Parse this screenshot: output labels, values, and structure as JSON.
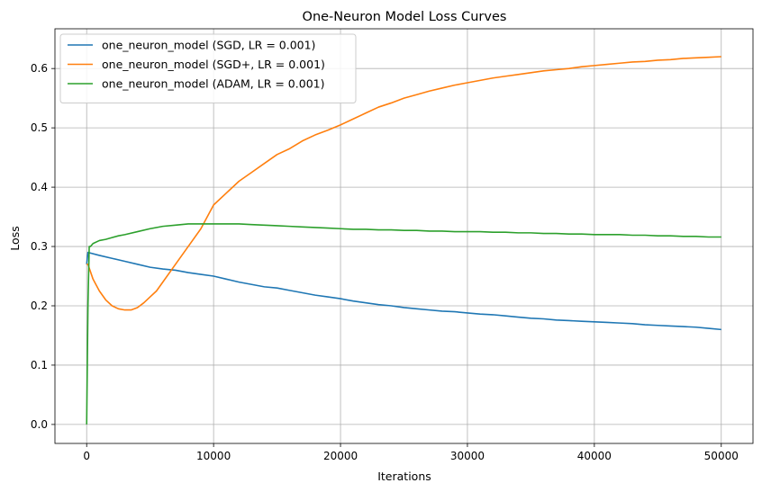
{
  "chart_data": {
    "type": "line",
    "title": "One-Neuron Model Loss Curves",
    "xlabel": "Iterations",
    "ylabel": "Loss",
    "xlim": [
      -2500,
      52500
    ],
    "ylim": [
      -0.032,
      0.667
    ],
    "x_ticks": [
      0,
      10000,
      20000,
      30000,
      40000,
      50000
    ],
    "x_tick_labels": [
      "0",
      "10000",
      "20000",
      "30000",
      "40000",
      "50000"
    ],
    "y_ticks": [
      0.0,
      0.1,
      0.2,
      0.3,
      0.4,
      0.5,
      0.6
    ],
    "y_tick_labels": [
      "0.0",
      "0.1",
      "0.2",
      "0.3",
      "0.4",
      "0.5",
      "0.6"
    ],
    "grid": true,
    "legend_position": "top-left",
    "series": [
      {
        "name": "one_neuron_model (SGD, LR = 0.001)",
        "color": "#1f77b4",
        "x": [
          0,
          100,
          1000,
          2000,
          3000,
          4000,
          5000,
          6000,
          7000,
          8000,
          9000,
          10000,
          11000,
          12000,
          13000,
          14000,
          15000,
          16000,
          17000,
          18000,
          19000,
          20000,
          21000,
          22000,
          23000,
          24000,
          25000,
          26000,
          27000,
          28000,
          29000,
          30000,
          31000,
          32000,
          33000,
          34000,
          35000,
          36000,
          37000,
          38000,
          39000,
          40000,
          41000,
          42000,
          43000,
          44000,
          45000,
          46000,
          47000,
          48000,
          49000,
          50000
        ],
        "y": [
          0.27,
          0.29,
          0.285,
          0.28,
          0.275,
          0.27,
          0.265,
          0.262,
          0.26,
          0.256,
          0.253,
          0.25,
          0.245,
          0.24,
          0.236,
          0.232,
          0.23,
          0.226,
          0.222,
          0.218,
          0.215,
          0.212,
          0.208,
          0.205,
          0.202,
          0.2,
          0.197,
          0.195,
          0.193,
          0.191,
          0.19,
          0.188,
          0.186,
          0.185,
          0.183,
          0.181,
          0.179,
          0.178,
          0.176,
          0.175,
          0.174,
          0.173,
          0.172,
          0.171,
          0.17,
          0.168,
          0.167,
          0.166,
          0.165,
          0.164,
          0.162,
          0.16
        ]
      },
      {
        "name": "one_neuron_model (SGD+, LR = 0.001)",
        "color": "#ff7f0e",
        "x": [
          0,
          100,
          500,
          1000,
          1500,
          2000,
          2500,
          3000,
          3500,
          4000,
          4500,
          5000,
          5500,
          6000,
          7000,
          8000,
          9000,
          10000,
          11000,
          12000,
          13000,
          14000,
          15000,
          16000,
          17000,
          18000,
          19000,
          20000,
          21000,
          22000,
          23000,
          24000,
          25000,
          26000,
          27000,
          28000,
          29000,
          30000,
          31000,
          32000,
          33000,
          34000,
          35000,
          36000,
          37000,
          38000,
          39000,
          40000,
          41000,
          42000,
          43000,
          44000,
          45000,
          46000,
          47000,
          48000,
          49000,
          50000
        ],
        "y": [
          0.27,
          0.27,
          0.245,
          0.225,
          0.21,
          0.2,
          0.195,
          0.193,
          0.193,
          0.197,
          0.205,
          0.215,
          0.225,
          0.24,
          0.27,
          0.3,
          0.33,
          0.37,
          0.39,
          0.41,
          0.425,
          0.44,
          0.455,
          0.465,
          0.478,
          0.488,
          0.496,
          0.505,
          0.515,
          0.525,
          0.535,
          0.542,
          0.55,
          0.556,
          0.562,
          0.567,
          0.572,
          0.576,
          0.58,
          0.584,
          0.587,
          0.59,
          0.593,
          0.596,
          0.598,
          0.6,
          0.603,
          0.605,
          0.607,
          0.609,
          0.611,
          0.612,
          0.614,
          0.615,
          0.617,
          0.618,
          0.619,
          0.62
        ]
      },
      {
        "name": "one_neuron_model (ADAM, LR = 0.001)",
        "color": "#2ca02c",
        "x": [
          0,
          100,
          200,
          300,
          500,
          1000,
          1500,
          2000,
          2500,
          3000,
          4000,
          5000,
          6000,
          7000,
          8000,
          9000,
          10000,
          11000,
          12000,
          13000,
          14000,
          15000,
          16000,
          17000,
          18000,
          19000,
          20000,
          21000,
          22000,
          23000,
          24000,
          25000,
          26000,
          27000,
          28000,
          29000,
          30000,
          31000,
          32000,
          33000,
          34000,
          35000,
          36000,
          37000,
          38000,
          39000,
          40000,
          41000,
          42000,
          43000,
          44000,
          45000,
          46000,
          47000,
          48000,
          49000,
          50000
        ],
        "y": [
          0.0,
          0.2,
          0.3,
          0.3,
          0.305,
          0.31,
          0.312,
          0.315,
          0.318,
          0.32,
          0.325,
          0.33,
          0.334,
          0.336,
          0.338,
          0.338,
          0.338,
          0.338,
          0.338,
          0.337,
          0.336,
          0.335,
          0.334,
          0.333,
          0.332,
          0.331,
          0.33,
          0.329,
          0.329,
          0.328,
          0.328,
          0.327,
          0.327,
          0.326,
          0.326,
          0.325,
          0.325,
          0.325,
          0.324,
          0.324,
          0.323,
          0.323,
          0.322,
          0.322,
          0.321,
          0.321,
          0.32,
          0.32,
          0.32,
          0.319,
          0.319,
          0.318,
          0.318,
          0.317,
          0.317,
          0.316,
          0.316
        ]
      }
    ]
  }
}
